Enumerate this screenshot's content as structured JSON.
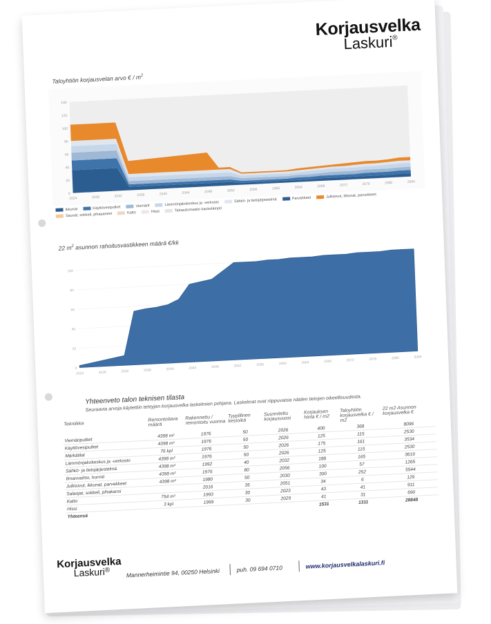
{
  "logo": {
    "line1": "Korjausvelka",
    "line2": "Laskuri",
    "reg": "®"
  },
  "chart1": {
    "title": "Taloyhtiön korjausvelan arvo € / m",
    "title_sup": "2",
    "legend": [
      {
        "label": "Ikkunat",
        "color": "#2b5d91"
      },
      {
        "label": "Käyttövesiputket",
        "color": "#3f74aa"
      },
      {
        "label": "Viemärit",
        "color": "#9eb8d6"
      },
      {
        "label": "Lämmönjakokeskus ja -verkosto",
        "color": "#c7d7ea"
      },
      {
        "label": "Sähkö- ja tietojärjestelmä",
        "color": "#dfe6f0"
      },
      {
        "label": "Parvekkeet",
        "color": "#2f5f95"
      },
      {
        "label": "Julkisivut, ikkunat, parvekkeet",
        "color": "#e8892b"
      },
      {
        "label": "Saunat, sokkeli, pihasaneet",
        "color": "#f4c89a"
      },
      {
        "label": "Katto",
        "color": "#f2d6c4"
      },
      {
        "label": "Hissi",
        "color": "#f0e6e6"
      },
      {
        "label": "Taloautomaatio kaukolämpö",
        "color": "#e4e4e4"
      }
    ]
  },
  "chart2": {
    "title_pre": "22 m",
    "title_sup": "2",
    "title_post": " asunnon rahoitusvastikkeen määrä €/kk"
  },
  "chart_data": [
    {
      "type": "area",
      "title": "Taloyhtiön korjausvelan arvo € / m2",
      "x": [
        "2024",
        "2026",
        "2028",
        "2030",
        "2032",
        "2034",
        "2036",
        "2038",
        "2040",
        "2042",
        "2044",
        "2046",
        "2048",
        "2050",
        "2052",
        "2054",
        "2056",
        "2058",
        "2060",
        "2062",
        "2064",
        "2066",
        "2068",
        "2070",
        "2072",
        "2074",
        "2076",
        "2078",
        "2080",
        "2082",
        "2084"
      ],
      "series": [
        {
          "name": "Ikkunat",
          "values": [
            35,
            35,
            35,
            35,
            35,
            5,
            5,
            5,
            5,
            5,
            5,
            5,
            5,
            5,
            5,
            3,
            3,
            3,
            3,
            3,
            3,
            3,
            4,
            4,
            4,
            4,
            4,
            4,
            4,
            5,
            5
          ]
        },
        {
          "name": "Käyttövesiputket",
          "values": [
            15,
            15,
            15,
            15,
            15,
            4,
            4,
            4,
            4,
            4,
            4,
            4,
            4,
            4,
            4,
            3,
            3,
            3,
            3,
            3,
            4,
            4,
            4,
            4,
            4,
            4,
            5,
            5,
            5,
            5,
            5
          ]
        },
        {
          "name": "Viemärit",
          "values": [
            12,
            12,
            12,
            12,
            12,
            5,
            5,
            5,
            5,
            5,
            5,
            5,
            5,
            5,
            5,
            4,
            4,
            4,
            4,
            4,
            4,
            4,
            4,
            5,
            5,
            5,
            5,
            5,
            5,
            5,
            5
          ]
        },
        {
          "name": "Lämmönjakokeskus ja -verkosto",
          "values": [
            10,
            10,
            10,
            10,
            10,
            6,
            6,
            6,
            6,
            6,
            6,
            6,
            6,
            6,
            6,
            4,
            4,
            4,
            4,
            4,
            4,
            5,
            5,
            5,
            5,
            5,
            5,
            5,
            6,
            6,
            6
          ]
        },
        {
          "name": "Sähkö- ja tietojärjestelmä",
          "values": [
            8,
            8,
            8,
            8,
            8,
            5,
            5,
            5,
            5,
            5,
            5,
            5,
            5,
            5,
            5,
            3,
            3,
            3,
            3,
            3,
            3,
            3,
            3,
            3,
            3,
            4,
            4,
            4,
            4,
            4,
            4
          ]
        },
        {
          "name": "Julkisivut, ikkunat, parvekkeet",
          "values": [
            25,
            25,
            25,
            25,
            25,
            20,
            21,
            22,
            23,
            24,
            25,
            26,
            27,
            3,
            3,
            2,
            2,
            2,
            2,
            2,
            3,
            3,
            3,
            3,
            4,
            4,
            4,
            4,
            4,
            5,
            5
          ]
        }
      ],
      "ylim": [
        0,
        140
      ]
    },
    {
      "type": "area",
      "title": "22 m2 asunnon rahoitusvastikkeen määrä €/kk",
      "x": [
        "2024",
        "2026",
        "2028",
        "2030",
        "2032",
        "2034",
        "2036",
        "2038",
        "2040",
        "2042",
        "2044",
        "2046",
        "2048",
        "2050",
        "2052",
        "2054",
        "2056",
        "2058",
        "2060",
        "2062",
        "2064",
        "2066",
        "2068",
        "2070",
        "2072",
        "2074",
        "2076",
        "2078",
        "2080",
        "2082",
        "2084"
      ],
      "values": [
        2,
        4,
        6,
        8,
        10,
        55,
        57,
        58,
        60,
        65,
        80,
        82,
        84,
        92,
        100,
        100,
        100,
        101,
        101,
        102,
        102,
        102,
        103,
        103,
        103,
        104,
        104,
        104,
        105,
        105,
        105
      ],
      "ylim": [
        0,
        110
      ]
    }
  ],
  "summary": {
    "title": "Yhteenveto talon teknisen tilasta",
    "note": "Seuraavia arvoja käytettiin tehtyjen korjausvelka laskelmien pohjana. Laskelmat ovat riippuvaisia näiden tietojen oikeellisuudesta.",
    "headers": [
      "Tekniikka",
      "Remontoitava määrä",
      "Rakennettu / remontoitu vuonna",
      "Tyypillinen kestoikä",
      "Suunniteltu korjausvuosi",
      "Korjauksen hinta € / m2",
      "Taloyhtiön korjausvelka € / m2",
      "22 m2 Asunnon korjausvelka €"
    ],
    "rows": [
      {
        "name": "Viemäriputket",
        "qty": "4398 m²",
        "year": "1976",
        "life": "50",
        "plan": "2026",
        "price": "400",
        "debt": "368",
        "apt": "8096"
      },
      {
        "name": "Käyttövesiputket",
        "qty": "4398 m²",
        "year": "1976",
        "life": "50",
        "plan": "2026",
        "price": "125",
        "debt": "115",
        "apt": "2530"
      },
      {
        "name": "Märkätilat",
        "qty": "76 kpl",
        "year": "1976",
        "life": "50",
        "plan": "2026",
        "price": "175",
        "debt": "161",
        "apt": "3534"
      },
      {
        "name": "Lämmönjakokeskus ja -verkosto",
        "qty": "4398 m²",
        "year": "1976",
        "life": "50",
        "plan": "2026",
        "price": "125",
        "debt": "115",
        "apt": "2530"
      },
      {
        "name": "Sähkö- ja tietojärjestelmä",
        "qty": "4398 m²",
        "year": "1992",
        "life": "40",
        "plan": "2032",
        "price": "188",
        "debt": "165",
        "apt": "3619"
      },
      {
        "name": "Ilmanvaihto, hormit",
        "qty": "4398 m²",
        "year": "1976",
        "life": "80",
        "plan": "2056",
        "price": "100",
        "debt": "57",
        "apt": "1265"
      },
      {
        "name": "Julkisivut, ikkunat, parvekkeet",
        "qty": "4398 m²",
        "year": "1980",
        "life": "50",
        "plan": "2030",
        "price": "300",
        "debt": "252",
        "apt": "5544"
      },
      {
        "name": "Salaojat, sokkeli, pihakansi",
        "qty": "",
        "year": "2016",
        "life": "35",
        "plan": "2051",
        "price": "34",
        "debt": "6",
        "apt": "129"
      },
      {
        "name": "Katto",
        "qty": "754 m²",
        "year": "1993",
        "life": "30",
        "plan": "2023",
        "price": "43",
        "debt": "41",
        "apt": "911"
      },
      {
        "name": "Hissi",
        "qty": "3 kpl",
        "year": "1999",
        "life": "30",
        "plan": "2029",
        "price": "41",
        "debt": "31",
        "apt": "690"
      }
    ],
    "total": {
      "name": "Yhteensä",
      "price": "1531",
      "debt": "1311",
      "apt": "28848"
    }
  },
  "footer": {
    "logo_line1": "Korjausvelka",
    "logo_line2": "Laskuri",
    "reg": "®",
    "address": "Mannerheimintie 94, 00250 Helsinki",
    "phone": "puh. 09 694 0710",
    "web": "www.korjausvelkalaskuri.fi"
  }
}
